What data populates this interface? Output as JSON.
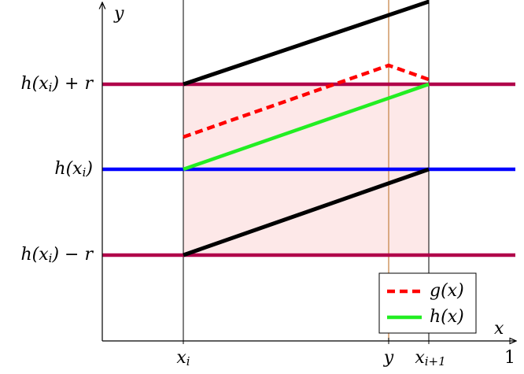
{
  "axes": {
    "x_label": "x",
    "y_label": "y"
  },
  "y_labels": [
    {
      "fn": "h(x",
      "sub": "i",
      "rest": ") + r"
    },
    {
      "fn": "h(x",
      "sub": "i",
      "rest": ")"
    },
    {
      "fn": "h(x",
      "sub": "i",
      "rest": ") − r"
    }
  ],
  "x_labels": [
    {
      "main": "x",
      "sub": "i"
    },
    {
      "main": "y"
    },
    {
      "main": "x",
      "sub": "i+1"
    },
    {
      "main": "1"
    }
  ],
  "legend": [
    "g(x)",
    "h(x)"
  ]
}
